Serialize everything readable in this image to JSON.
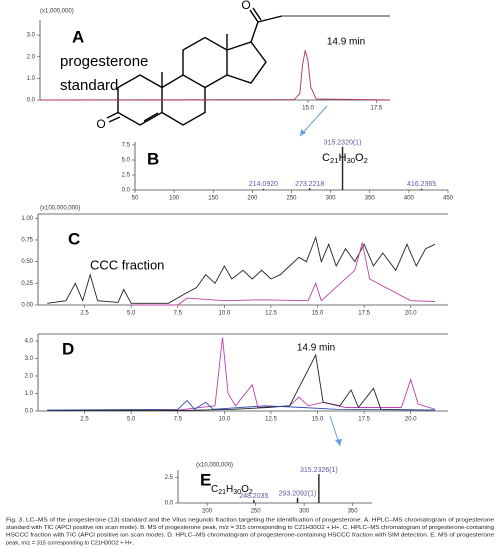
{
  "chart_data": [
    {
      "type": "line",
      "label": "A",
      "annotation": [
        "progesterone",
        "standard"
      ],
      "y_multiplier": "(x1,000,000)",
      "peak_label": "14.9 min",
      "xlim": [
        5.2,
        18
      ],
      "ylim": [
        0,
        3.7
      ],
      "xticks": [
        {
          "value": 15,
          "label": "15.0"
        },
        17.5
      ],
      "yticks": [
        {
          "value": 0,
          "label": "0.0"
        },
        {
          "value": 1,
          "label": "1.0"
        },
        {
          "value": 2,
          "label": "2.0"
        },
        {
          "value": 3,
          "label": "3.0"
        }
      ],
      "series": [
        {
          "color": "#b0306a",
          "x": [
            5.2,
            14.5,
            14.7,
            14.8,
            14.9,
            15.0,
            15.1,
            15.3,
            18
          ],
          "values": [
            0,
            0.02,
            0.3,
            1.6,
            2.3,
            1.8,
            0.6,
            0.05,
            0
          ]
        }
      ]
    },
    {
      "type": "bar",
      "label": "B",
      "formula": [
        "C",
        "21",
        "H",
        "30",
        "O",
        "2"
      ],
      "color": "#222",
      "label_color": "#5a5aa8",
      "xlim": [
        50,
        450
      ],
      "ylim": [
        0,
        8
      ],
      "xticks": [
        50,
        100,
        150,
        200,
        250,
        300,
        350,
        400,
        450
      ],
      "yticks": [
        {
          "value": 0,
          "label": "0.0"
        },
        {
          "value": 2.5,
          "label": "2.5"
        },
        {
          "value": 5,
          "label": "5.0"
        },
        {
          "value": 7.5,
          "label": "7.5"
        }
      ],
      "x": [
        214.092,
        273.2218,
        315.232,
        416.2365
      ],
      "values": [
        0.2,
        0.3,
        7.2,
        0.2
      ],
      "value_labels": [
        "214.0920",
        "273.2218",
        "315.2320(1)",
        "416.2365"
      ]
    },
    {
      "type": "line",
      "label": "C",
      "annotation": [
        "CCC fraction"
      ],
      "y_multiplier": "(x100,000,000)",
      "xlim": [
        0,
        22
      ],
      "ylim": [
        0,
        1.05
      ],
      "xticks": [
        2.5,
        {
          "value": 5,
          "label": "5.0"
        },
        7.5,
        {
          "value": 10,
          "label": "10.0"
        },
        12.5,
        {
          "value": 15,
          "label": "15.0"
        },
        17.5,
        {
          "value": 20,
          "label": "20.0"
        }
      ],
      "yticks": [
        {
          "value": 0,
          "label": "0.00"
        },
        {
          "value": 0.25,
          "label": "0.25"
        },
        {
          "value": 0.5,
          "label": "0.50"
        },
        {
          "value": 0.75,
          "label": "0.75"
        },
        {
          "value": 1,
          "label": "1.00"
        }
      ],
      "series": [
        {
          "color": "#222",
          "x": [
            0.5,
            1.5,
            2.0,
            2.4,
            2.8,
            3.2,
            4.3,
            4.6,
            5.0,
            7.0,
            7.8,
            8.5,
            9.0,
            9.5,
            10.0,
            10.4,
            11.0,
            11.5,
            12.0,
            12.5,
            13.0,
            13.5,
            14.0,
            14.4,
            14.9,
            15.2,
            15.6,
            16.0,
            16.5,
            17.0,
            17.5,
            18.0,
            18.5,
            19.2,
            19.8,
            20.3,
            20.8,
            21.3
          ],
          "values": [
            0.02,
            0.05,
            0.25,
            0.05,
            0.35,
            0.05,
            0.03,
            0.18,
            0.02,
            0.02,
            0.12,
            0.2,
            0.35,
            0.25,
            0.45,
            0.3,
            0.4,
            0.3,
            0.4,
            0.3,
            0.35,
            0.45,
            0.55,
            0.5,
            0.78,
            0.5,
            0.7,
            0.45,
            0.65,
            0.5,
            0.7,
            0.45,
            0.6,
            0.4,
            0.7,
            0.45,
            0.65,
            0.7
          ]
        },
        {
          "color": "#c040a0",
          "x": [
            5.0,
            7.5,
            8.0,
            10.0,
            12.0,
            14.5,
            14.9,
            15.2,
            17.0,
            17.4,
            17.8,
            20.0,
            21.3
          ],
          "values": [
            0,
            0,
            0.08,
            0.05,
            0.06,
            0.05,
            0.25,
            0.05,
            0.4,
            0.72,
            0.3,
            0.05,
            0.04
          ]
        }
      ]
    },
    {
      "type": "line",
      "label": "D",
      "peak_label": "14.9 min",
      "xlim": [
        0,
        22
      ],
      "ylim": [
        0,
        4.4
      ],
      "xticks": [
        2.5,
        {
          "value": 5,
          "label": "5.0"
        },
        7.5,
        {
          "value": 10,
          "label": "10.0"
        },
        12.5,
        {
          "value": 15,
          "label": "15.0"
        },
        17.5,
        {
          "value": 20,
          "label": "20.0"
        }
      ],
      "yticks": [
        {
          "value": 0,
          "label": "0.0"
        },
        {
          "value": 1,
          "label": "1.0"
        },
        {
          "value": 2,
          "label": "2.0"
        },
        {
          "value": 3,
          "label": "3.0"
        },
        {
          "value": 4,
          "label": "4.0"
        }
      ],
      "series": [
        {
          "color": "#c040b0",
          "x": [
            0.5,
            7.5,
            9.5,
            9.9,
            10.2,
            10.6,
            11.5,
            11.8,
            13.5,
            14.0,
            14.5,
            15.3,
            16.5,
            19.5,
            20.0,
            20.4,
            21.3
          ],
          "values": [
            0.02,
            0.05,
            0.3,
            4.2,
            1.0,
            0.3,
            1.5,
            0.2,
            0.3,
            0.8,
            0.3,
            0.5,
            0.2,
            0.2,
            1.8,
            0.4,
            0.1
          ]
        },
        {
          "color": "#222",
          "x": [
            0.5,
            7.5,
            10.5,
            12.3,
            13.5,
            14.9,
            15.3,
            16.2,
            16.8,
            17.2,
            18.0,
            18.4,
            21.3
          ],
          "values": [
            0.02,
            0.02,
            0.1,
            0.2,
            0.3,
            3.2,
            0.5,
            0.3,
            1.2,
            0.2,
            1.3,
            0.1,
            0.05
          ]
        },
        {
          "color": "#3050b0",
          "x": [
            0.5,
            7.5,
            8.0,
            8.4,
            9.0,
            9.4,
            12.2,
            14.2,
            16.0,
            21.3
          ],
          "values": [
            0.05,
            0.1,
            0.6,
            0.1,
            0.5,
            0.1,
            0.3,
            0.2,
            0.1,
            0.05
          ]
        }
      ]
    },
    {
      "type": "bar",
      "label": "E",
      "formula": [
        "C",
        "21",
        "H",
        "30",
        "O",
        "2"
      ],
      "y_multiplier": "(x10,000,000)",
      "color": "#222",
      "label_color": "#5a5aa8",
      "xlim": [
        170,
        370
      ],
      "ylim": [
        0,
        3.2
      ],
      "xticks": [
        200,
        250,
        300,
        350
      ],
      "yticks": [
        {
          "value": 0,
          "label": "0.0"
        },
        {
          "value": 2.5,
          "label": "2.5"
        }
      ],
      "x": [
        248.2035,
        293.2092,
        315.2326
      ],
      "values": [
        0.3,
        0.5,
        2.8
      ],
      "value_labels": [
        "248.2035",
        "293.2092(1)",
        "315.2326(1)"
      ]
    }
  ],
  "structure": {
    "labels": [
      "O",
      "O"
    ]
  },
  "caption": [
    "Fig. 3. LC–MS of the progesterone (13) standard and the Vitus negundo fraction targeting the identification of progesterone. A. HPLC–MS chromatogram of progesterone",
    "standard with TIC (APCI positive ion scan mode). B. MS of progesterone peak, m/z = 315 corresponding to C21H30O2 + H+. C. HPLC–MS chromatogram of progesterone-containing",
    "HSCCC fraction with TIC (APCI positive ion scan mode). D. HPLC–MS chromatogram of progesterone-containing HSCCC fraction with SIM detection. E. MS of progesterone",
    "peak, m/z = 315 corresponding to C21H30O2 + H+."
  ]
}
